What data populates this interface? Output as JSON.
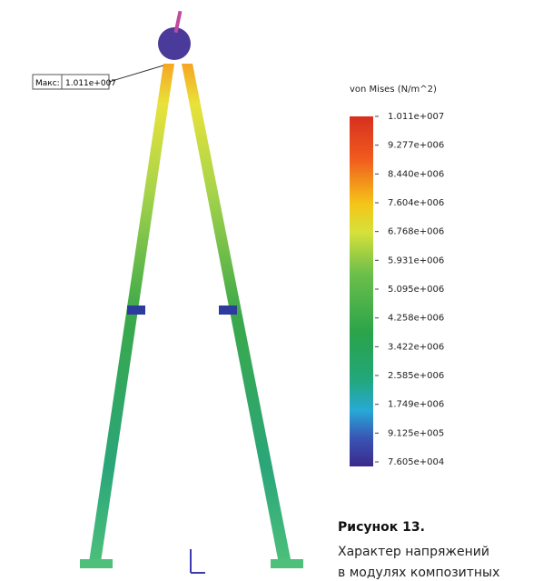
{
  "max_label": {
    "prefix": "Макс:",
    "value": "1.011e+007"
  },
  "legend": {
    "title": "von Mises (N/m^2)",
    "ticks": [
      "1.011e+007",
      "9.277e+006",
      "8.440e+006",
      "7.604e+006",
      "6.768e+006",
      "5.931e+006",
      "5.095e+006",
      "4.258e+006",
      "3.422e+006",
      "2.585e+006",
      "1.749e+006",
      "9.125e+005",
      "7.605e+004"
    ]
  },
  "caption": {
    "title": "Рисунок 13.",
    "lines": [
      "Характер напряжений",
      "в модулях композитных"
    ]
  }
}
